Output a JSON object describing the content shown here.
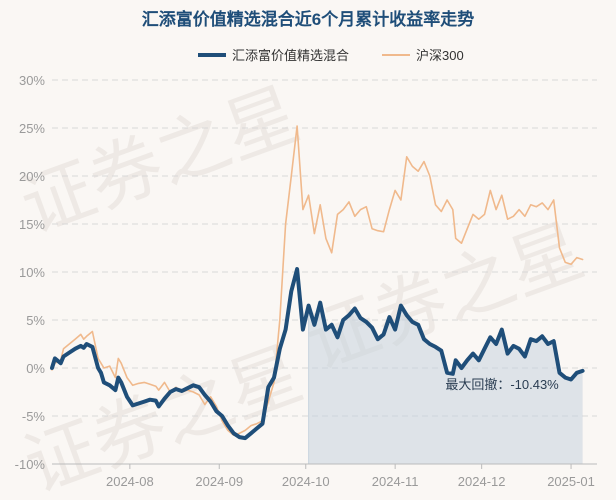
{
  "chart_data": {
    "type": "line",
    "title": "汇添富价值精选混合近6个月累计收益率走势",
    "legend_placement": "top-center",
    "grid": true,
    "y_unit": "%",
    "ylim": [
      -10,
      30
    ],
    "y_ticks": [
      "30%",
      "25%",
      "20%",
      "15%",
      "10%",
      "5%",
      "0%",
      "-5%",
      "-10%"
    ],
    "y_tick_values": [
      30,
      25,
      20,
      15,
      10,
      5,
      0,
      -5,
      -10
    ],
    "x_ticks": [
      "2024-08",
      "2024-09",
      "2024-10",
      "2024-11",
      "2024-12",
      "2025-01"
    ],
    "x_tick_dates": [
      "2024-08-01",
      "2024-09-01",
      "2024-10-01",
      "2024-11-01",
      "2024-12-01",
      "2025-01-01"
    ],
    "x_range": [
      "2024-07-05",
      "2025-01-10"
    ],
    "shaded_region_start": "2024-10-01",
    "series": [
      {
        "name": "汇添富价值精选混合",
        "color": "#1f4e79",
        "points": [
          [
            "2024-07-05",
            0.0
          ],
          [
            "2024-07-06",
            1.0
          ],
          [
            "2024-07-08",
            0.5
          ],
          [
            "2024-07-09",
            1.2
          ],
          [
            "2024-07-11",
            1.6
          ],
          [
            "2024-07-13",
            2.0
          ],
          [
            "2024-07-15",
            2.3
          ],
          [
            "2024-07-16",
            2.1
          ],
          [
            "2024-07-17",
            2.5
          ],
          [
            "2024-07-19",
            2.2
          ],
          [
            "2024-07-21",
            0.0
          ],
          [
            "2024-07-22",
            -0.5
          ],
          [
            "2024-07-23",
            -1.5
          ],
          [
            "2024-07-25",
            -1.8
          ],
          [
            "2024-07-27",
            -2.3
          ],
          [
            "2024-07-28",
            -1.0
          ],
          [
            "2024-07-29",
            -1.5
          ],
          [
            "2024-07-31",
            -3.0
          ],
          [
            "2024-08-02",
            -3.9
          ],
          [
            "2024-08-04",
            -3.7
          ],
          [
            "2024-08-06",
            -3.5
          ],
          [
            "2024-08-08",
            -3.3
          ],
          [
            "2024-08-10",
            -3.4
          ],
          [
            "2024-08-11",
            -4.0
          ],
          [
            "2024-08-13",
            -3.2
          ],
          [
            "2024-08-15",
            -2.5
          ],
          [
            "2024-08-17",
            -2.2
          ],
          [
            "2024-08-19",
            -2.4
          ],
          [
            "2024-08-21",
            -2.1
          ],
          [
            "2024-08-23",
            -1.8
          ],
          [
            "2024-08-25",
            -2.0
          ],
          [
            "2024-08-27",
            -2.8
          ],
          [
            "2024-08-29",
            -3.5
          ],
          [
            "2024-08-31",
            -4.5
          ],
          [
            "2024-09-02",
            -5.0
          ],
          [
            "2024-09-04",
            -6.0
          ],
          [
            "2024-09-06",
            -6.8
          ],
          [
            "2024-09-08",
            -7.2
          ],
          [
            "2024-09-10",
            -7.3
          ],
          [
            "2024-09-12",
            -6.8
          ],
          [
            "2024-09-14",
            -6.3
          ],
          [
            "2024-09-16",
            -5.8
          ],
          [
            "2024-09-18",
            -2.0
          ],
          [
            "2024-09-20",
            -1.0
          ],
          [
            "2024-09-22",
            2.0
          ],
          [
            "2024-09-24",
            4.0
          ],
          [
            "2024-09-26",
            8.0
          ],
          [
            "2024-09-28",
            10.3
          ],
          [
            "2024-09-30",
            4.0
          ],
          [
            "2024-10-02",
            6.5
          ],
          [
            "2024-10-04",
            4.5
          ],
          [
            "2024-10-06",
            6.8
          ],
          [
            "2024-10-08",
            4.0
          ],
          [
            "2024-10-10",
            4.5
          ],
          [
            "2024-10-12",
            3.2
          ],
          [
            "2024-10-14",
            5.0
          ],
          [
            "2024-10-16",
            5.5
          ],
          [
            "2024-10-18",
            6.2
          ],
          [
            "2024-10-20",
            5.2
          ],
          [
            "2024-10-22",
            4.8
          ],
          [
            "2024-10-24",
            4.2
          ],
          [
            "2024-10-26",
            3.0
          ],
          [
            "2024-10-28",
            3.5
          ],
          [
            "2024-10-30",
            5.3
          ],
          [
            "2024-11-01",
            4.0
          ],
          [
            "2024-11-03",
            6.5
          ],
          [
            "2024-11-05",
            5.5
          ],
          [
            "2024-11-07",
            4.8
          ],
          [
            "2024-11-09",
            4.5
          ],
          [
            "2024-11-11",
            3.0
          ],
          [
            "2024-11-13",
            2.5
          ],
          [
            "2024-11-15",
            2.2
          ],
          [
            "2024-11-17",
            1.8
          ],
          [
            "2024-11-19",
            -0.5
          ],
          [
            "2024-11-21",
            -0.6
          ],
          [
            "2024-11-22",
            0.8
          ],
          [
            "2024-11-24",
            0.0
          ],
          [
            "2024-11-26",
            0.8
          ],
          [
            "2024-11-28",
            1.5
          ],
          [
            "2024-11-30",
            0.8
          ],
          [
            "2024-12-02",
            2.0
          ],
          [
            "2024-12-04",
            3.2
          ],
          [
            "2024-12-06",
            2.5
          ],
          [
            "2024-12-08",
            4.0
          ],
          [
            "2024-12-10",
            1.5
          ],
          [
            "2024-12-12",
            2.3
          ],
          [
            "2024-12-14",
            2.0
          ],
          [
            "2024-12-16",
            1.2
          ],
          [
            "2024-12-18",
            3.0
          ],
          [
            "2024-12-20",
            2.8
          ],
          [
            "2024-12-22",
            3.3
          ],
          [
            "2024-12-24",
            2.5
          ],
          [
            "2024-12-26",
            2.8
          ],
          [
            "2024-12-28",
            -0.5
          ],
          [
            "2024-12-30",
            -1.0
          ],
          [
            "2025-01-01",
            -1.2
          ],
          [
            "2025-01-03",
            -0.5
          ],
          [
            "2025-01-05",
            -0.3
          ]
        ]
      },
      {
        "name": "沪深300",
        "color": "#f0b98c",
        "points": [
          [
            "2024-07-05",
            -0.2
          ],
          [
            "2024-07-06",
            0.5
          ],
          [
            "2024-07-08",
            0.8
          ],
          [
            "2024-07-09",
            2.0
          ],
          [
            "2024-07-11",
            2.5
          ],
          [
            "2024-07-13",
            3.0
          ],
          [
            "2024-07-15",
            3.5
          ],
          [
            "2024-07-16",
            3.0
          ],
          [
            "2024-07-17",
            3.3
          ],
          [
            "2024-07-19",
            3.8
          ],
          [
            "2024-07-21",
            1.0
          ],
          [
            "2024-07-22",
            0.5
          ],
          [
            "2024-07-23",
            0.0
          ],
          [
            "2024-07-25",
            0.2
          ],
          [
            "2024-07-27",
            -1.0
          ],
          [
            "2024-07-28",
            1.0
          ],
          [
            "2024-07-29",
            0.5
          ],
          [
            "2024-07-31",
            -1.0
          ],
          [
            "2024-08-02",
            -1.8
          ],
          [
            "2024-08-04",
            -1.6
          ],
          [
            "2024-08-06",
            -1.5
          ],
          [
            "2024-08-08",
            -1.7
          ],
          [
            "2024-08-10",
            -1.9
          ],
          [
            "2024-08-11",
            -2.3
          ],
          [
            "2024-08-13",
            -1.5
          ],
          [
            "2024-08-15",
            -2.5
          ],
          [
            "2024-08-17",
            -2.0
          ],
          [
            "2024-08-19",
            -2.5
          ],
          [
            "2024-08-21",
            -2.3
          ],
          [
            "2024-08-23",
            -2.5
          ],
          [
            "2024-08-25",
            -2.8
          ],
          [
            "2024-08-27",
            -3.8
          ],
          [
            "2024-08-29",
            -3.0
          ],
          [
            "2024-08-31",
            -4.0
          ],
          [
            "2024-09-02",
            -5.5
          ],
          [
            "2024-09-04",
            -6.5
          ],
          [
            "2024-09-06",
            -7.0
          ],
          [
            "2024-09-08",
            -6.8
          ],
          [
            "2024-09-10",
            -6.5
          ],
          [
            "2024-09-12",
            -6.0
          ],
          [
            "2024-09-14",
            -5.8
          ],
          [
            "2024-09-16",
            -5.5
          ],
          [
            "2024-09-18",
            -3.5
          ],
          [
            "2024-09-20",
            -1.5
          ],
          [
            "2024-09-22",
            5.0
          ],
          [
            "2024-09-24",
            15.0
          ],
          [
            "2024-09-26",
            20.0
          ],
          [
            "2024-09-28",
            25.2
          ],
          [
            "2024-09-30",
            16.5
          ],
          [
            "2024-10-02",
            18.0
          ],
          [
            "2024-10-04",
            14.0
          ],
          [
            "2024-10-06",
            17.0
          ],
          [
            "2024-10-08",
            13.5
          ],
          [
            "2024-10-10",
            12.0
          ],
          [
            "2024-10-12",
            16.0
          ],
          [
            "2024-10-14",
            16.5
          ],
          [
            "2024-10-16",
            17.3
          ],
          [
            "2024-10-18",
            15.8
          ],
          [
            "2024-10-20",
            16.5
          ],
          [
            "2024-10-22",
            16.8
          ],
          [
            "2024-10-24",
            14.5
          ],
          [
            "2024-10-26",
            14.3
          ],
          [
            "2024-10-28",
            14.2
          ],
          [
            "2024-10-30",
            16.5
          ],
          [
            "2024-11-01",
            18.5
          ],
          [
            "2024-11-03",
            17.5
          ],
          [
            "2024-11-05",
            22.0
          ],
          [
            "2024-11-07",
            21.0
          ],
          [
            "2024-11-09",
            20.5
          ],
          [
            "2024-11-11",
            21.5
          ],
          [
            "2024-11-13",
            20.0
          ],
          [
            "2024-11-15",
            17.0
          ],
          [
            "2024-11-17",
            16.3
          ],
          [
            "2024-11-19",
            17.5
          ],
          [
            "2024-11-21",
            16.5
          ],
          [
            "2024-11-22",
            13.5
          ],
          [
            "2024-11-24",
            13.0
          ],
          [
            "2024-11-26",
            14.5
          ],
          [
            "2024-11-28",
            16.0
          ],
          [
            "2024-11-30",
            15.5
          ],
          [
            "2024-12-02",
            16.0
          ],
          [
            "2024-12-04",
            18.5
          ],
          [
            "2024-12-06",
            16.5
          ],
          [
            "2024-12-08",
            18.0
          ],
          [
            "2024-12-10",
            15.5
          ],
          [
            "2024-12-12",
            15.8
          ],
          [
            "2024-12-14",
            16.5
          ],
          [
            "2024-12-16",
            15.8
          ],
          [
            "2024-12-18",
            17.0
          ],
          [
            "2024-12-20",
            16.8
          ],
          [
            "2024-12-22",
            17.2
          ],
          [
            "2024-12-24",
            16.5
          ],
          [
            "2024-12-26",
            17.5
          ],
          [
            "2024-12-28",
            12.5
          ],
          [
            "2024-12-30",
            11.0
          ],
          [
            "2025-01-01",
            10.8
          ],
          [
            "2025-01-03",
            11.5
          ],
          [
            "2025-01-05",
            11.3
          ]
        ]
      }
    ],
    "annotations": [
      {
        "text": "最大回撤：-10.43%",
        "date": "2024-12-26",
        "value": -2.2
      }
    ]
  },
  "watermark": "证券之星"
}
